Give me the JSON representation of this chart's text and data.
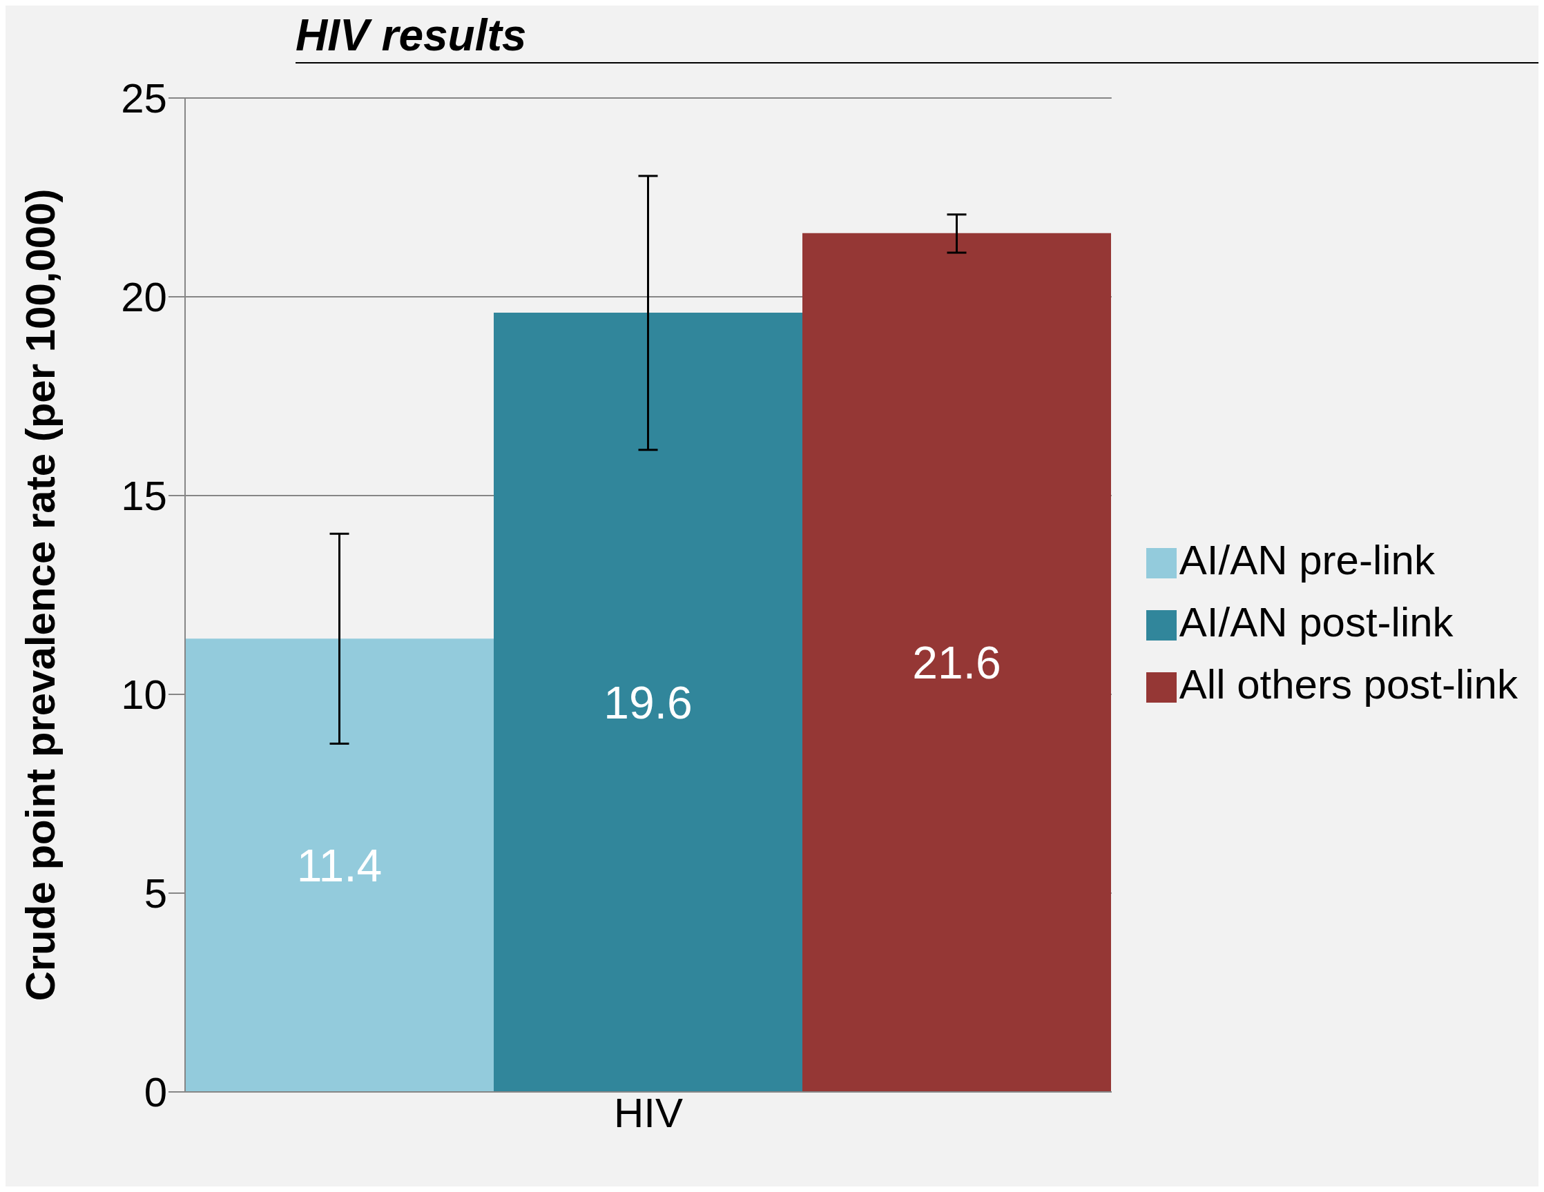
{
  "chart_data": {
    "type": "bar",
    "title": "HIV results",
    "categories": [
      "HIV"
    ],
    "ylabel": "Crude point prevalence rate (per 100,000)",
    "series": [
      {
        "name": "AI/AN pre-link",
        "color": "#93cbdc",
        "values": [
          11.4
        ],
        "errors": [
          [
            8.76,
            14.04
          ]
        ]
      },
      {
        "name": "AI/AN post-link",
        "color": "#31869b",
        "values": [
          19.6
        ],
        "errors": [
          [
            16.15,
            23.04
          ]
        ]
      },
      {
        "name": "All others post-link",
        "color": "#953735",
        "values": [
          21.6
        ],
        "errors": [
          [
            21.11,
            22.07
          ]
        ]
      }
    ],
    "ylim": [
      0,
      25
    ],
    "yticks": [
      0,
      5,
      10,
      15,
      20,
      25
    ],
    "grid": "y",
    "legend": "right",
    "data_labels": true
  }
}
